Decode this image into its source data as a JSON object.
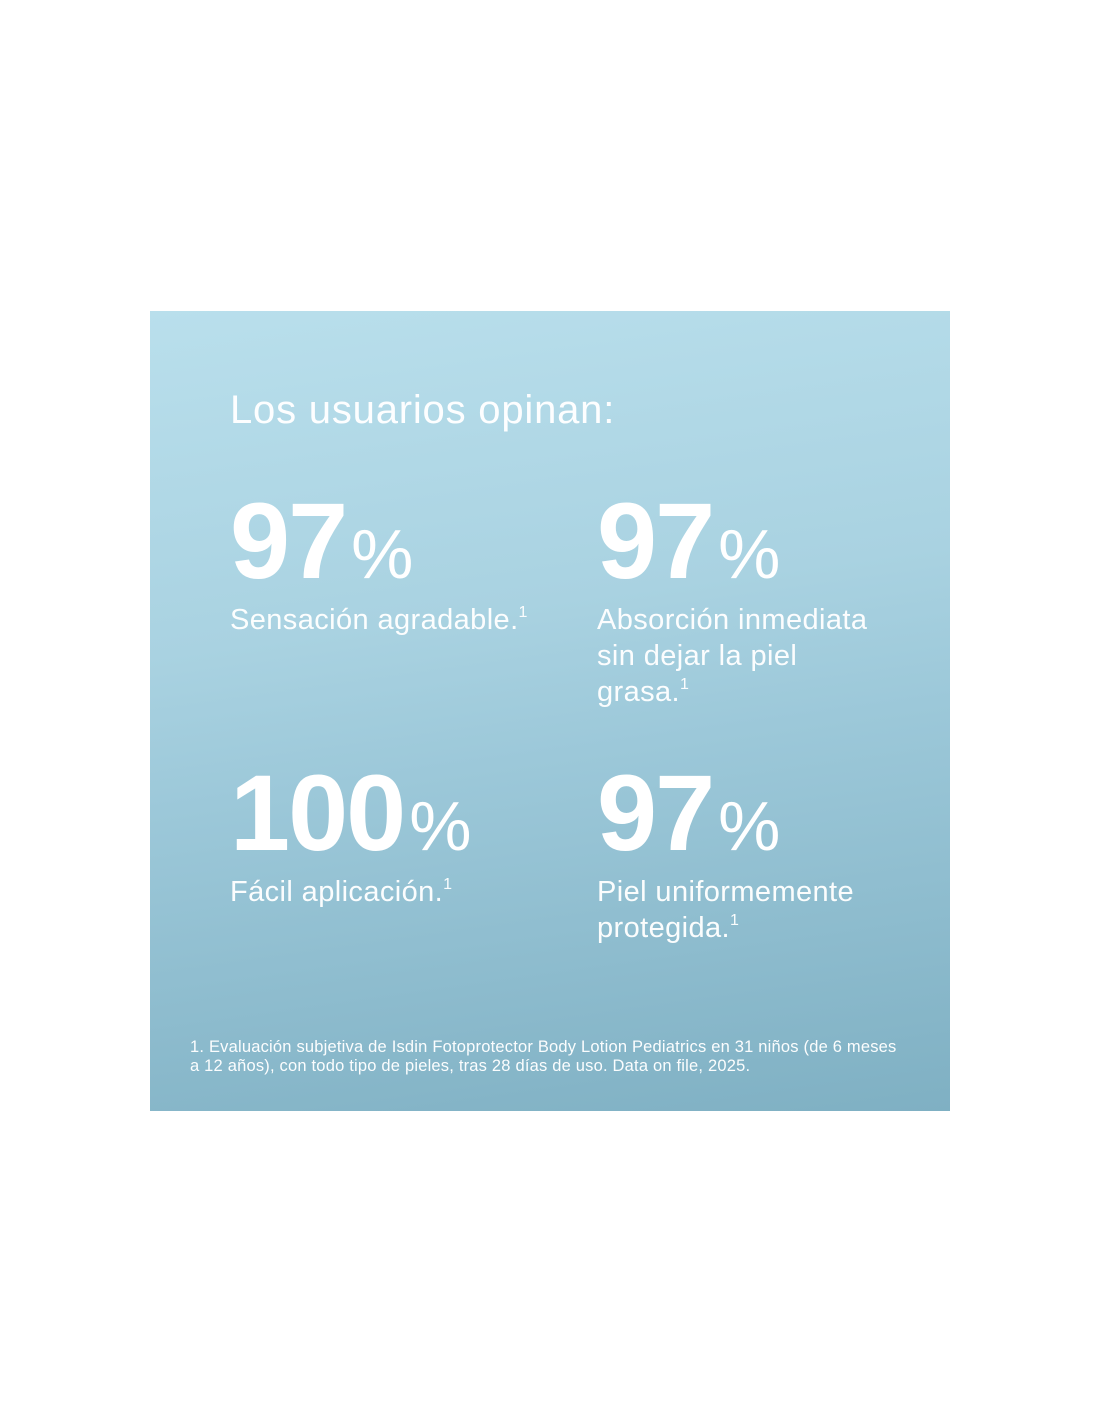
{
  "page": {
    "background_color": "#ffffff"
  },
  "panel": {
    "gradient_top_color": "#b9dfec",
    "gradient_bottom_color": "#7fb0c3",
    "text_color": "#ffffff",
    "title": "Los usuarios opinan:",
    "stats": [
      {
        "value": "97",
        "unit": "%",
        "label": "Sensación agradable.",
        "footnote_ref": "1"
      },
      {
        "value": "97",
        "unit": "%",
        "label": "Absorción inmediata sin dejar la piel grasa.",
        "footnote_ref": "1"
      },
      {
        "value": "100",
        "unit": "%",
        "label": "Fácil aplicación.",
        "footnote_ref": "1"
      },
      {
        "value": "97",
        "unit": "%",
        "label": "Piel uniformemente protegida.",
        "footnote_ref": "1"
      }
    ],
    "footnote": "1. Evaluación subjetiva de Isdin Fotoprotector Body Lotion Pediatrics en 31 niños (de 6 meses a 12 años), con todo tipo de pieles, tras 28 días de uso. Data on file, 2025."
  }
}
